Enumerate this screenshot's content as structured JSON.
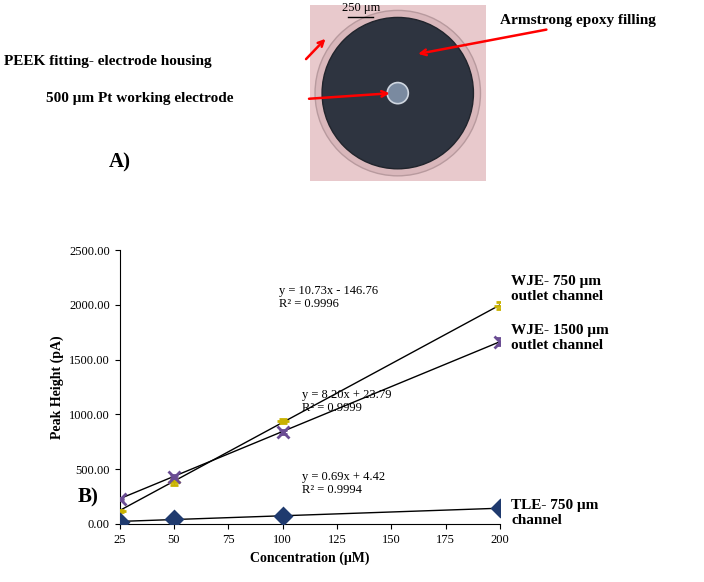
{
  "panel_a": {
    "label": "A)",
    "scale_bar": "250 μm",
    "annotations": [
      "PEEK fitting- electrode housing",
      "Armstrong epoxy filling",
      "500 μm Pt working electrode"
    ]
  },
  "chart_data": {
    "type": "scatter",
    "panel_label": "B)",
    "x_label": "Concentration (μM)",
    "y_label": "Peak Height (pA)",
    "xlim": [
      25,
      200
    ],
    "xticks": [
      25,
      50,
      75,
      100,
      125,
      150,
      175,
      200
    ],
    "ylim": [
      0,
      2500
    ],
    "yticks": [
      {
        "value": 0,
        "label": "0.00"
      },
      {
        "value": 500,
        "label": "500.00"
      },
      {
        "value": 1000,
        "label": "1000.00"
      },
      {
        "value": 1500,
        "label": "1500.00"
      },
      {
        "value": 2000,
        "label": "2000.00"
      },
      {
        "value": 2500,
        "label": "2500.00"
      }
    ],
    "grid": false,
    "series": [
      {
        "name": "WJE- 750 μm\noutlet channel",
        "color": "#c9b200",
        "marker": "dash",
        "x": [
          25,
          50,
          100,
          200
        ],
        "values": [
          120,
          380,
          940,
          1995
        ],
        "errors": [
          10,
          25,
          15,
          30
        ],
        "trend": {
          "slope": 10.73,
          "intercept": -146.76
        },
        "equation": "y = 10.73x - 146.76",
        "r_squared": "R² = 0.9996"
      },
      {
        "name": "WJE- 1500 μm\noutlet channel",
        "color": "#6a4c93",
        "marker": "x",
        "x": [
          25,
          50,
          100,
          200
        ],
        "values": [
          230,
          430,
          840,
          1665
        ],
        "errors": [
          10,
          15,
          15,
          35
        ],
        "trend": {
          "slope": 8.2,
          "intercept": 23.79
        },
        "equation": "y = 8.20x + 23.79",
        "r_squared": "R² = 0.9999"
      },
      {
        "name": "TLE- 750 μm\nchannel",
        "color": "#1f3a6e",
        "marker": "diamond",
        "x": [
          25,
          50,
          100,
          200
        ],
        "values": [
          20,
          40,
          72,
          140
        ],
        "errors": [
          3,
          3,
          4,
          6
        ],
        "trend": {
          "slope": 0.69,
          "intercept": 4.42
        },
        "equation": "y = 0.69x + 4.42",
        "r_squared": "R² = 0.9994"
      }
    ]
  }
}
